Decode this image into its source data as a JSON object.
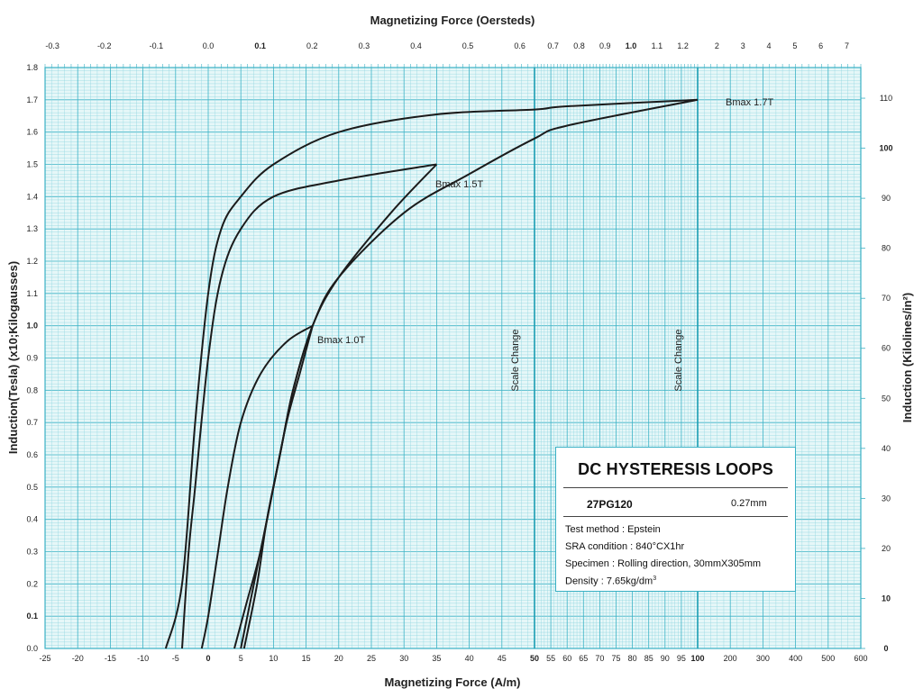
{
  "chart_data": {
    "type": "line",
    "title": "Magnetizing Force (Oersteds)",
    "xlabel": "Magnetizing Force (A/m)",
    "ylabel": "Induction(Tesla) (x10;Kilogausses)",
    "ylabel_right": "Induction (Kilolines/in²)",
    "ylim": [
      0,
      1.8
    ],
    "y_ticks": [
      "0.0",
      "0.1",
      "0.2",
      "0.3",
      "0.4",
      "0.5",
      "0.6",
      "0.7",
      "0.8",
      "0.9",
      "1.0",
      "1.1",
      "1.2",
      "1.3",
      "1.4",
      "1.5",
      "1.6",
      "1.7",
      "1.8"
    ],
    "y_right_ticks": [
      "0",
      "10",
      "20",
      "30",
      "40",
      "50",
      "60",
      "70",
      "80",
      "90",
      "100",
      "110"
    ],
    "x_axis_segments": [
      {
        "range": [
          -25,
          50
        ],
        "scale": "linear"
      },
      {
        "range": [
          50,
          100
        ],
        "scale": "linear"
      },
      {
        "range": [
          100,
          600
        ],
        "scale": "linear"
      }
    ],
    "x_ticks": [
      "-25",
      "-20",
      "-15",
      "-10",
      "-5",
      "0",
      "5",
      "10",
      "15",
      "20",
      "25",
      "30",
      "35",
      "40",
      "45",
      "50",
      "55",
      "60",
      "65",
      "70",
      "75",
      "80",
      "85",
      "90",
      "95",
      "100",
      "200",
      "300",
      "400",
      "500",
      "600"
    ],
    "x_top_ticks": [
      "-0.3",
      "-0.2",
      "-0.1",
      "0.0",
      "0.1",
      "0.2",
      "0.3",
      "0.4",
      "0.5",
      "0.6",
      "0.7",
      "0.8",
      "0.9",
      "1.0",
      "1.1",
      "1.2",
      "2",
      "3",
      "4",
      "5",
      "6",
      "7"
    ],
    "scale_change_label": "Scale Change",
    "grid": true,
    "series": [
      {
        "name": "Bmax 1.7T",
        "upper": [
          [
            100,
            1.7
          ],
          [
            60,
            1.68
          ],
          [
            50,
            1.67
          ],
          [
            35,
            1.655
          ],
          [
            20,
            1.6
          ],
          [
            10,
            1.5
          ],
          [
            5,
            1.4
          ],
          [
            2,
            1.3
          ],
          [
            0,
            1.1
          ],
          [
            -2,
            0.7
          ],
          [
            -4,
            0.2
          ],
          [
            -6.5,
            0.0
          ]
        ],
        "lower": [
          [
            5.5,
            0.0
          ],
          [
            7.5,
            0.2
          ],
          [
            9,
            0.4
          ],
          [
            11,
            0.6
          ],
          [
            13,
            0.8
          ],
          [
            16,
            1.0
          ],
          [
            20,
            1.15
          ],
          [
            30,
            1.35
          ],
          [
            40,
            1.47
          ],
          [
            50,
            1.58
          ],
          [
            60,
            1.62
          ],
          [
            100,
            1.7
          ]
        ]
      },
      {
        "name": "Bmax 1.5T",
        "upper": [
          [
            35,
            1.5
          ],
          [
            20,
            1.45
          ],
          [
            10,
            1.4
          ],
          [
            5,
            1.3
          ],
          [
            2,
            1.15
          ],
          [
            0,
            0.9
          ],
          [
            -2,
            0.5
          ],
          [
            -3,
            0.3
          ],
          [
            -4,
            0.0
          ]
        ],
        "lower": [
          [
            5,
            0.0
          ],
          [
            7,
            0.2
          ],
          [
            9,
            0.4
          ],
          [
            11,
            0.6
          ],
          [
            13,
            0.8
          ],
          [
            16,
            1.0
          ],
          [
            20,
            1.15
          ],
          [
            28,
            1.35
          ],
          [
            35,
            1.5
          ]
        ]
      },
      {
        "name": "Bmax 1.0T",
        "upper": [
          [
            16,
            1.0
          ],
          [
            12,
            0.95
          ],
          [
            8,
            0.85
          ],
          [
            5,
            0.7
          ],
          [
            3,
            0.5
          ],
          [
            1.5,
            0.3
          ],
          [
            0,
            0.1
          ],
          [
            -1,
            0.0
          ]
        ],
        "lower": [
          [
            4,
            0.0
          ],
          [
            6,
            0.15
          ],
          [
            8,
            0.3
          ],
          [
            10,
            0.5
          ],
          [
            12,
            0.7
          ],
          [
            14,
            0.85
          ],
          [
            16,
            1.0
          ]
        ]
      }
    ]
  },
  "infobox": {
    "title": "DC HYSTERESIS LOOPS",
    "grade": "27PG120",
    "thickness": "0.27mm",
    "lines": [
      "Test method : Epstein",
      "SRA condition : 840°CX1hr",
      "Specimen : Rolling direction, 30mmX305mm",
      "Density : 7.65kg/dm"
    ],
    "density_sup": "3"
  }
}
